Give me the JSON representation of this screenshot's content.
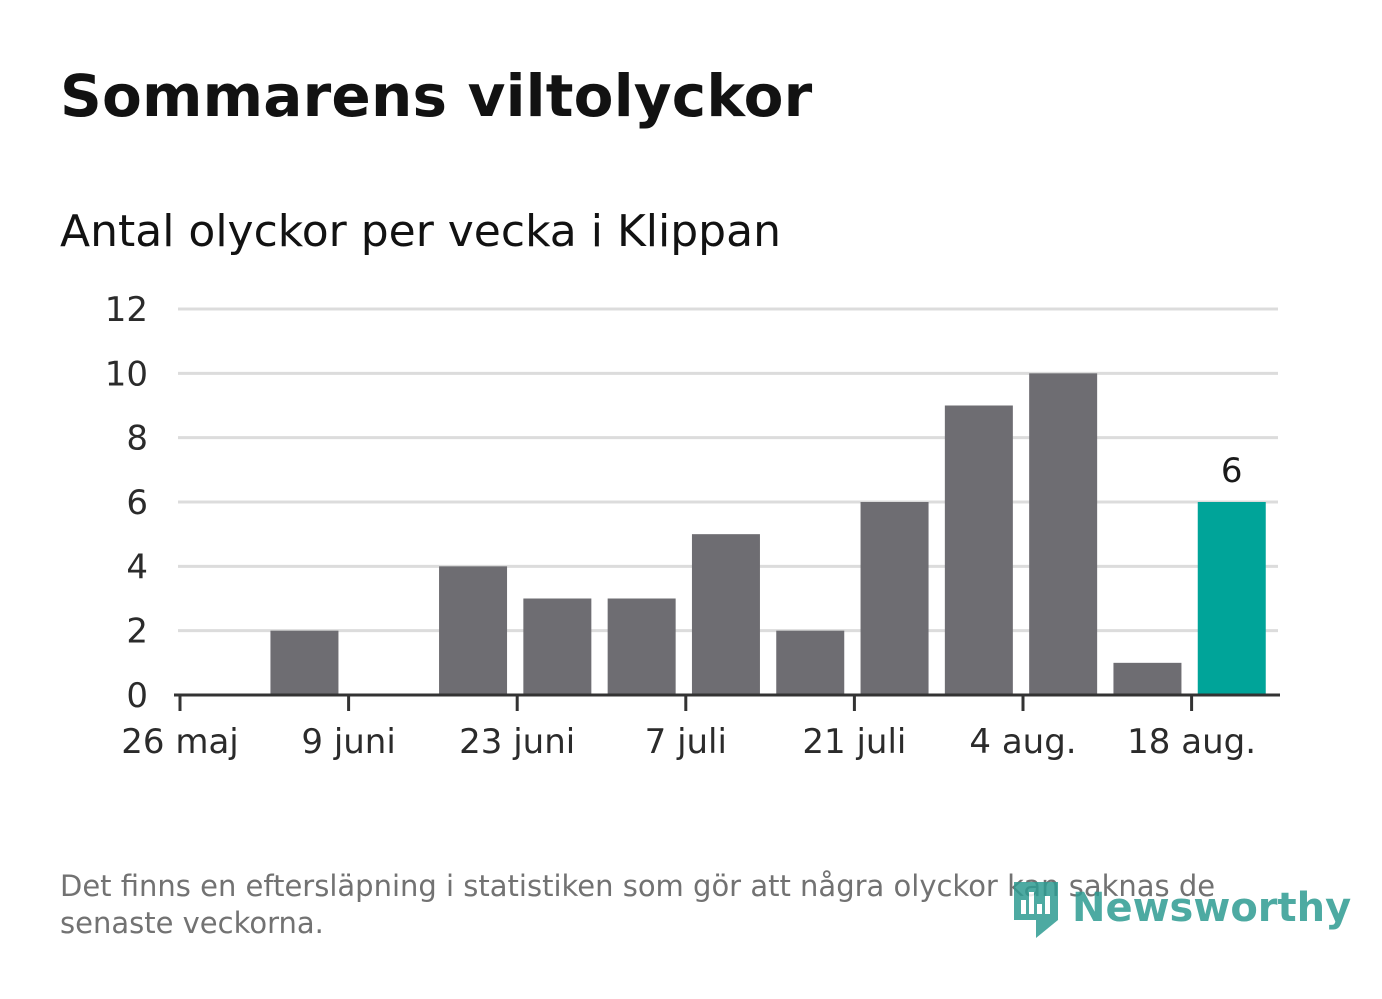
{
  "header": {
    "title": "Sommarens viltolyckor",
    "subtitle": "Antal olyckor per vecka i Klippan"
  },
  "chart_data": {
    "type": "bar",
    "title": "Sommarens viltolyckor",
    "subtitle": "Antal olyckor per vecka i Klippan",
    "xlabel": "",
    "ylabel": "",
    "categories": [
      "2019-05-26",
      "2019-06-02",
      "2019-06-09",
      "2019-06-16",
      "2019-06-23",
      "2019-06-30",
      "2019-07-07",
      "2019-07-14",
      "2019-07-21",
      "2019-07-28",
      "2019-08-04",
      "2019-08-11",
      "2019-08-18"
    ],
    "values": [
      0,
      2,
      0,
      4,
      3,
      3,
      5,
      2,
      6,
      9,
      10,
      1,
      6
    ],
    "x_tick_labels": [
      "26 maj",
      "9 juni",
      "23 juni",
      "7 juli",
      "21 juli",
      "4 aug.",
      "18 aug."
    ],
    "y_ticks": [
      0,
      2,
      4,
      6,
      8,
      10,
      12
    ],
    "ylim": [
      0,
      12
    ],
    "grid": true,
    "highlight_index": 12,
    "highlight_label": "6",
    "colors": {
      "bar": "#6e6d72",
      "highlight": "#00a499",
      "grid": "#dcdcdc",
      "axis": "#333333"
    }
  },
  "footer": {
    "note": "Det finns en eftersläpning i statistiken som gör att några olyckor kan saknas de senaste veckorna.",
    "logo_text": "Newsworthy",
    "logo_icon": "newsworthy-chart-icon"
  }
}
